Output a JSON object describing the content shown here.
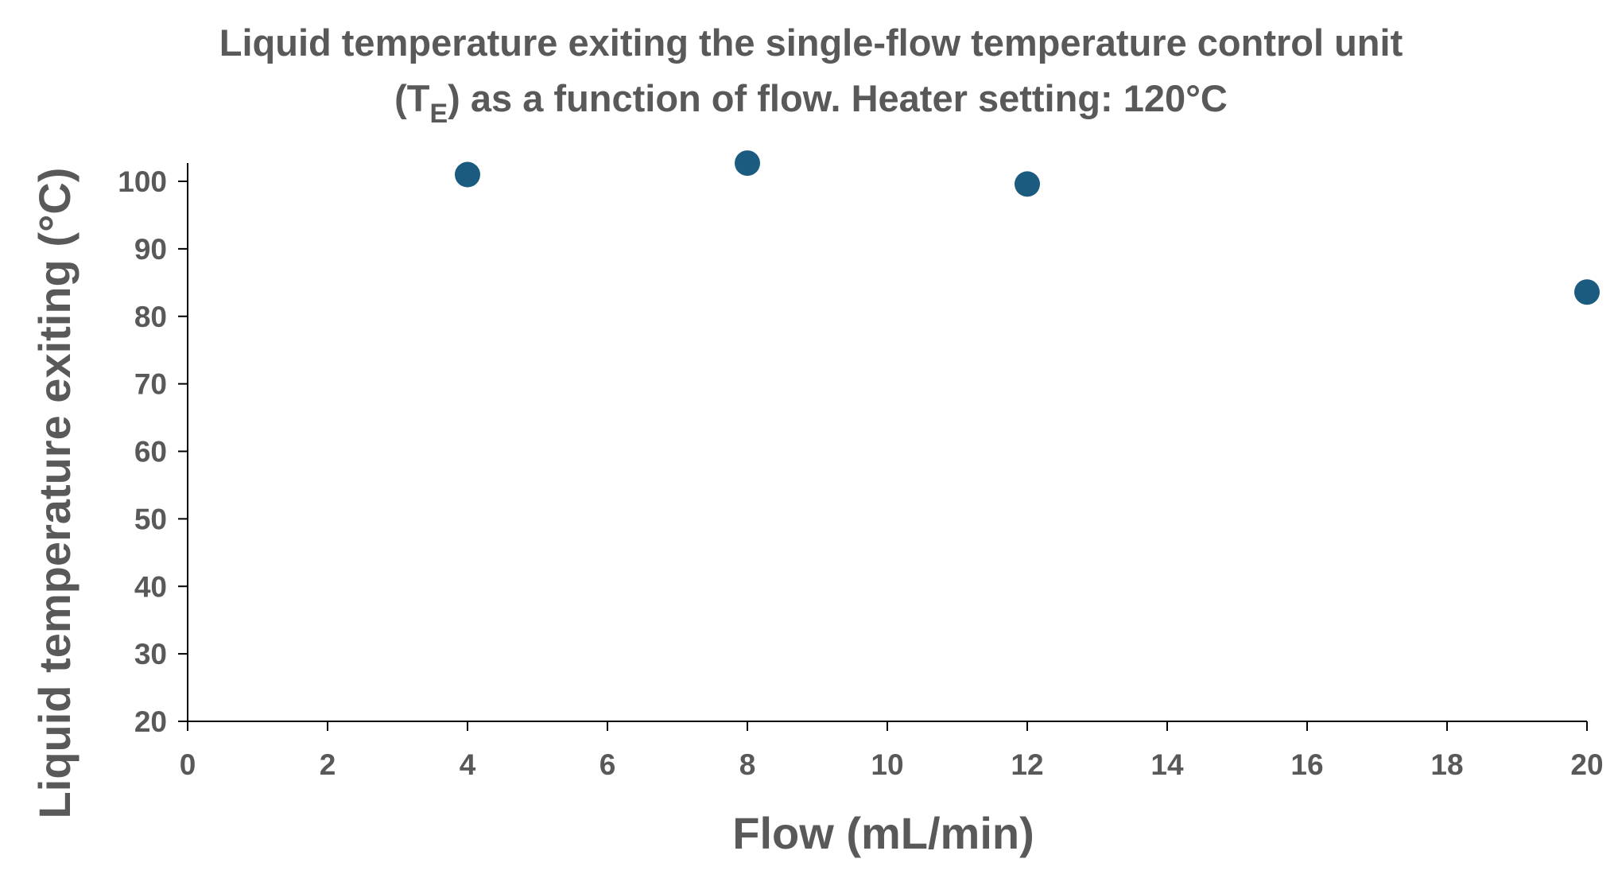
{
  "chart_data": {
    "type": "scatter",
    "title": "Liquid temperature exiting the single-flow temperature control unit",
    "title_line2_prefix": "(T",
    "title_line2_subscript": "E",
    "title_line2_suffix": ") as a function of flow.  Heater setting: 120°C",
    "xlabel": "Flow (mL/min)",
    "ylabel": "Liquid temperature exiting  (°C)",
    "xlim": [
      0,
      20
    ],
    "ylim": [
      20,
      100
    ],
    "x_ticks": [
      "0",
      "2",
      "4",
      "6",
      "8",
      "10",
      "12",
      "14",
      "16",
      "18",
      "20"
    ],
    "y_ticks": [
      "20",
      "30",
      "40",
      "50",
      "60",
      "70",
      "80",
      "90",
      "100"
    ],
    "grid": false,
    "legend": "none",
    "series": [
      {
        "x": [
          4,
          8,
          12,
          20
        ],
        "y": [
          101,
          102.7,
          99.6,
          83.6
        ]
      }
    ],
    "colors": {
      "marker": "#1a5b7f",
      "axis": "#000000",
      "text": "#595959"
    }
  }
}
